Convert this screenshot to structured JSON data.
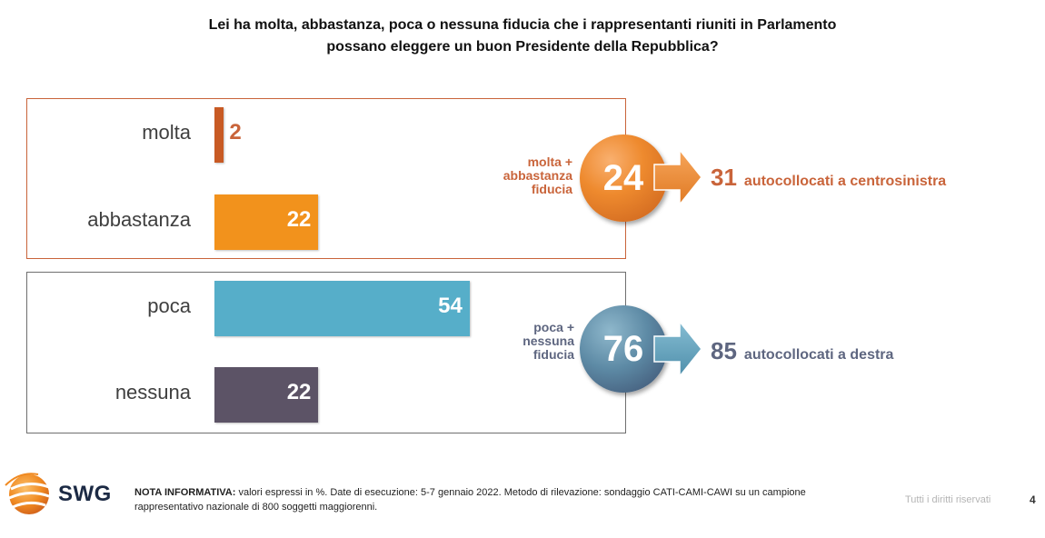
{
  "title": {
    "line1": "Lei ha molta, abbastanza, poca o nessuna fiducia che i rappresentanti riuniti in Parlamento",
    "line2": "possano eleggere un buon Presidente della Repubblica?"
  },
  "chart_data": {
    "type": "bar",
    "orientation": "horizontal",
    "title": "Lei ha molta, abbastanza, poca o nessuna fiducia che i rappresentanti riuniti in Parlamento possano eleggere un buon Presidente della Repubblica?",
    "categories": [
      "molta",
      "abbastanza",
      "poca",
      "nessuna"
    ],
    "values": [
      2,
      22,
      54,
      22
    ],
    "value_labels": [
      "2",
      "22",
      "54",
      "22"
    ],
    "colors": [
      "#c85a24",
      "#f2921c",
      "#56aec9",
      "#5c5366"
    ],
    "xlim": [
      0,
      100
    ],
    "grid": false,
    "groups": [
      {
        "label_lines": [
          "molta +",
          "abbastanza",
          "fiducia"
        ],
        "total": "24",
        "result_value": "31",
        "result_text": "autocollocati a centrosinistra",
        "color": "#c9643a"
      },
      {
        "label_lines": [
          "poca +",
          "nessuna",
          "fiducia"
        ],
        "total": "76",
        "result_value": "85",
        "result_text": "autocollocati a destra",
        "color": "#5e6680"
      }
    ]
  },
  "footer": {
    "logo_text": "SWG",
    "note_label": "NOTA INFORMATIVA:",
    "note_text": "valori espressi in %. Date di esecuzione: 5-7 gennaio 2022. Metodo di rilevazione: sondaggio CATI-CAMI-CAWI su un campione rappresentativo nazionale di 800 soggetti maggiorenni.",
    "rights": "Tutti i diritti riservati",
    "page_number": "4"
  }
}
